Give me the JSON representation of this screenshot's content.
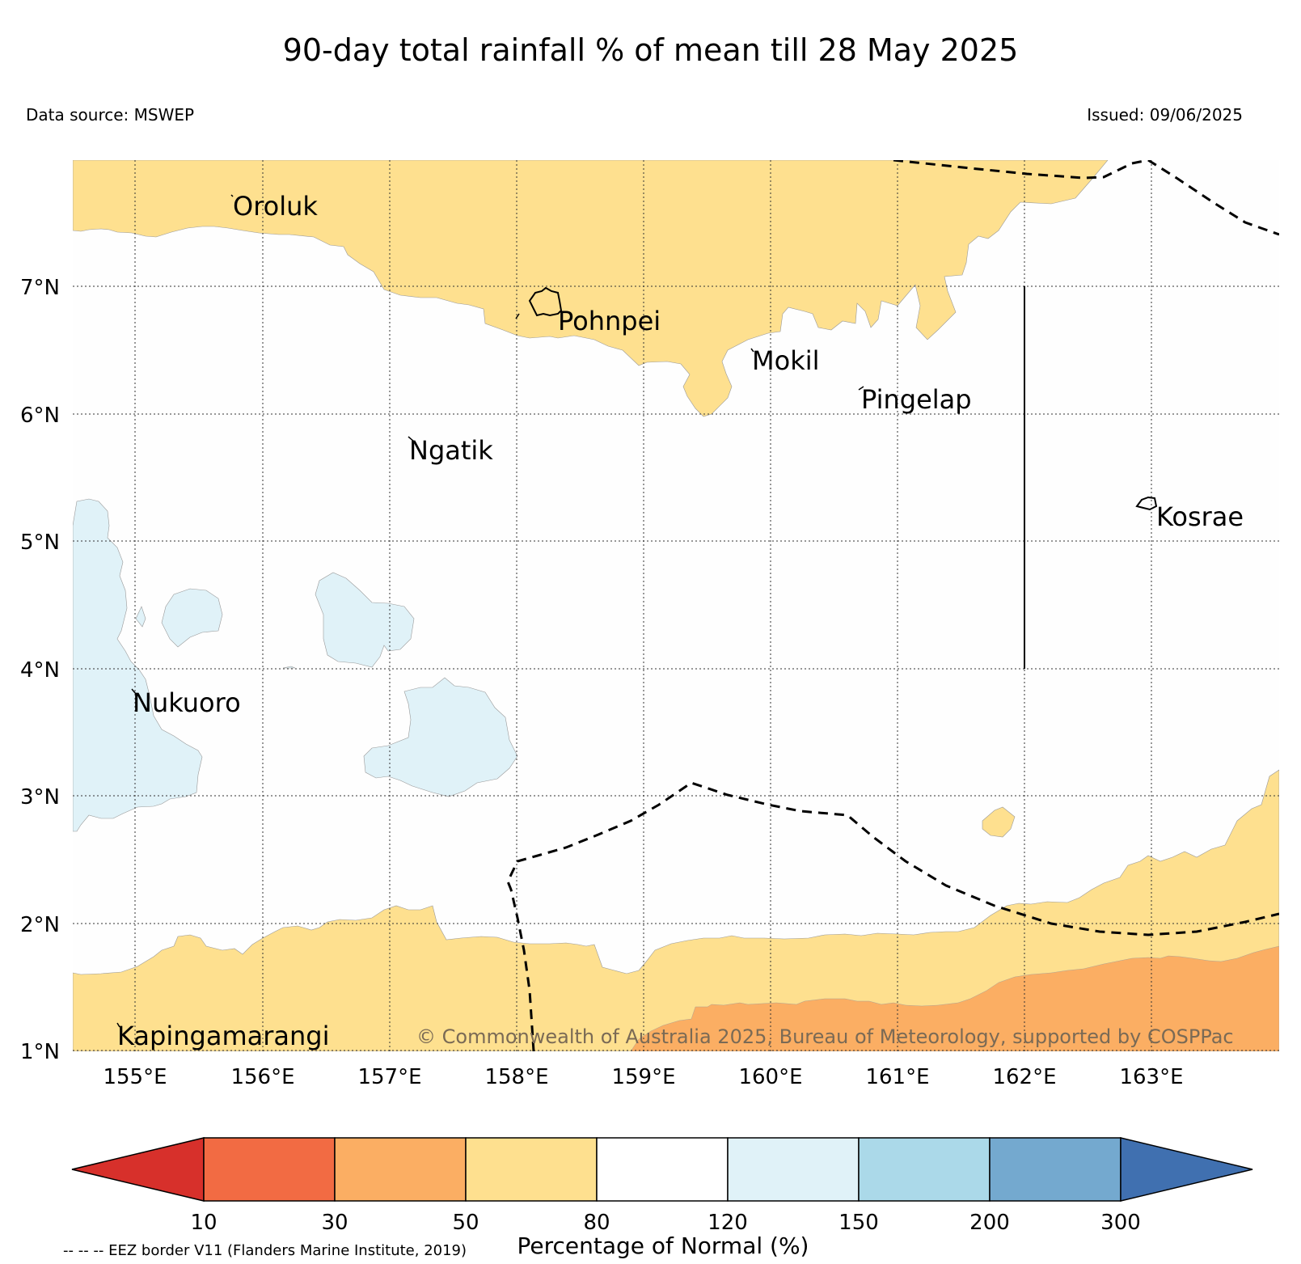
{
  "title": "90-day total rainfall % of mean till 28 May 2025",
  "data_source": "Data source: MSWEP",
  "issued": "Issued: 09/06/2025",
  "copyright": "© Commonwealth of Australia 2025, Bureau of Meteorology, supported by COSPPac",
  "eez_note": "-- -- -- EEZ border V11 (Flanders Marine Institute, 2019)",
  "lat_labels": [
    "7°N",
    "6°N",
    "5°N",
    "4°N",
    "3°N",
    "2°N",
    "1°N"
  ],
  "lon_labels": [
    "155°E",
    "156°E",
    "157°E",
    "158°E",
    "159°E",
    "160°E",
    "161°E",
    "162°E",
    "163°E"
  ],
  "places": [
    {
      "name": "Oroluk"
    },
    {
      "name": "Pohnpei"
    },
    {
      "name": "Mokil"
    },
    {
      "name": "Pingelap"
    },
    {
      "name": "Ngatik"
    },
    {
      "name": "Kosrae"
    },
    {
      "name": "Nukuoro"
    },
    {
      "name": "Kapingamarangi"
    }
  ],
  "colorbar": {
    "title": "Percentage of Normal (%)",
    "ticks": [
      "10",
      "30",
      "50",
      "80",
      "120",
      "150",
      "200",
      "300"
    ],
    "colors": [
      "#d7302b",
      "#f26b43",
      "#fbae63",
      "#fee08f",
      "#ffffff",
      "#e0f2f8",
      "#abd9e9",
      "#74a9cf",
      "#4070b0"
    ]
  },
  "map_colors": {
    "dry_50_80": "#fee08f",
    "dry_30_50": "#fbae63",
    "wet_120_150": "#e0f2f8"
  }
}
